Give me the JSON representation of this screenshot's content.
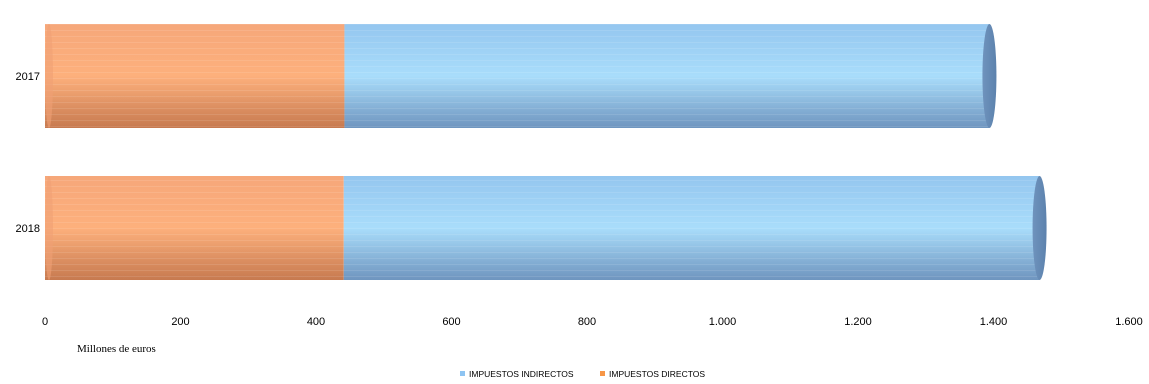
{
  "chart_data": {
    "type": "bar",
    "orientation": "horizontal",
    "stacked": true,
    "categories": [
      "2017",
      "2018"
    ],
    "series": [
      {
        "name": "IMPUESTOS DIRECTOS",
        "values": [
          442,
          441
        ],
        "color": "#f79646"
      },
      {
        "name": "IMPUESTOS INDIRECTOS",
        "values": [
          952,
          1027
        ],
        "color": "#4f81bd"
      }
    ],
    "xlim": [
      0,
      1600
    ],
    "x_ticks": [
      0,
      200,
      400,
      600,
      800,
      1000,
      1200,
      1400,
      1600
    ],
    "x_tick_labels": [
      "0",
      "200",
      "400",
      "600",
      "800",
      "1.000",
      "1.200",
      "1.400",
      "1.600"
    ],
    "unit_label": "Millones de euros",
    "legend": {
      "position": "bottom",
      "entries": [
        "IMPUESTOS INDIRECTOS",
        "IMPUESTOS DIRECTOS"
      ]
    },
    "grid": false
  }
}
